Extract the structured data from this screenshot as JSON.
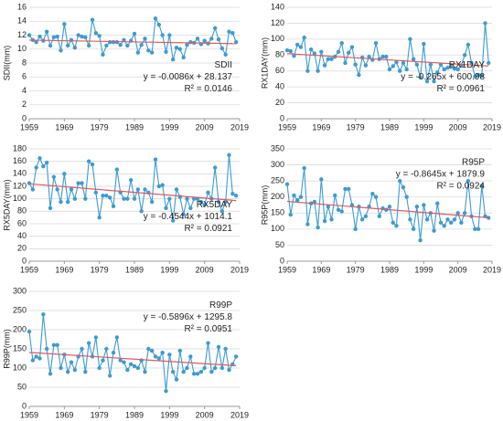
{
  "chart_data": [
    {
      "type": "line",
      "ylabel": "SDII(mm)",
      "x": [
        1959,
        1960,
        1961,
        1962,
        1963,
        1964,
        1965,
        1966,
        1967,
        1968,
        1969,
        1970,
        1971,
        1972,
        1973,
        1974,
        1975,
        1976,
        1977,
        1978,
        1979,
        1980,
        1981,
        1982,
        1983,
        1984,
        1985,
        1986,
        1987,
        1988,
        1989,
        1990,
        1991,
        1992,
        1993,
        1994,
        1995,
        1996,
        1997,
        1998,
        1999,
        2000,
        2001,
        2002,
        2003,
        2004,
        2005,
        2006,
        2007,
        2008,
        2009,
        2010,
        2011,
        2012,
        2013,
        2014,
        2015,
        2016,
        2017,
        2018
      ],
      "series": [
        {
          "name": "SDII",
          "color": "#3d9bd3",
          "values": [
            12.0,
            11.3,
            11.0,
            11.8,
            11.2,
            12.5,
            10.5,
            11.7,
            11.8,
            9.8,
            13.6,
            10.5,
            11.3,
            10.2,
            12.0,
            11.8,
            11.7,
            10.5,
            14.2,
            12.3,
            11.9,
            9.2,
            10.5,
            11.0,
            11.0,
            11.0,
            10.6,
            11.3,
            10.5,
            11.2,
            12.2,
            9.5,
            10.6,
            11.5,
            9.8,
            9.5,
            14.4,
            13.5,
            12.0,
            9.6,
            12.0,
            8.5,
            10.2,
            10.0,
            8.8,
            10.6,
            11.0,
            10.9,
            11.5,
            10.7,
            11.2,
            10.8,
            11.5,
            13.0,
            11.4,
            10.1,
            9.2,
            12.5,
            12.3,
            11.0
          ]
        }
      ],
      "trend": {
        "color": "#e05a5a",
        "slope": -0.0086,
        "intercept": 28.137,
        "equation": "y = -0.0086x + 28.137",
        "r2_label": "R² = 0.0146"
      },
      "xlim": [
        1959,
        2019
      ],
      "xticks": [
        1959,
        1969,
        1979,
        1989,
        1999,
        2009,
        2019
      ],
      "ylim": [
        0,
        16
      ],
      "yticks": [
        0,
        2,
        4,
        6,
        8,
        10,
        12,
        14,
        16
      ],
      "grid": true
    },
    {
      "type": "line",
      "ylabel": "RX1DAY(mm)",
      "x": [
        1959,
        1960,
        1961,
        1962,
        1963,
        1964,
        1965,
        1966,
        1967,
        1968,
        1969,
        1970,
        1971,
        1972,
        1973,
        1974,
        1975,
        1976,
        1977,
        1978,
        1979,
        1980,
        1981,
        1982,
        1983,
        1984,
        1985,
        1986,
        1987,
        1988,
        1989,
        1990,
        1991,
        1992,
        1993,
        1994,
        1995,
        1996,
        1997,
        1998,
        1999,
        2000,
        2001,
        2002,
        2003,
        2004,
        2005,
        2006,
        2007,
        2008,
        2009,
        2010,
        2011,
        2012,
        2013,
        2014,
        2015,
        2016,
        2017,
        2018
      ],
      "series": [
        {
          "name": "RX1DAY",
          "color": "#3d9bd3",
          "values": [
            86,
            85,
            79,
            93,
            90,
            102,
            60,
            87,
            82,
            60,
            84,
            67,
            75,
            75,
            78,
            84,
            95,
            70,
            83,
            90,
            68,
            55,
            77,
            67,
            78,
            74,
            95,
            75,
            78,
            78,
            62,
            66,
            71,
            60,
            70,
            62,
            100,
            75,
            68,
            52,
            94,
            47,
            68,
            47,
            58,
            68,
            62,
            64,
            65,
            63,
            62,
            67,
            80,
            93,
            70,
            53,
            55,
            54,
            120,
            70
          ]
        }
      ],
      "trend": {
        "color": "#e05a5a",
        "slope": -0.265,
        "intercept": 600.98,
        "equation": "y = -0.265x + 600.98",
        "r2_label": "R² = 0.0961"
      },
      "xlim": [
        1959,
        2019
      ],
      "xticks": [
        1959,
        1969,
        1979,
        1989,
        1999,
        2009,
        2019
      ],
      "ylim": [
        0,
        140
      ],
      "yticks": [
        0,
        20,
        40,
        60,
        80,
        100,
        120,
        140
      ],
      "grid": true
    },
    {
      "type": "line",
      "ylabel": "RX5DAY(mm)",
      "x": [
        1959,
        1960,
        1961,
        1962,
        1963,
        1964,
        1965,
        1966,
        1967,
        1968,
        1969,
        1970,
        1971,
        1972,
        1973,
        1974,
        1975,
        1976,
        1977,
        1978,
        1979,
        1980,
        1981,
        1982,
        1983,
        1984,
        1985,
        1986,
        1987,
        1988,
        1989,
        1990,
        1991,
        1992,
        1993,
        1994,
        1995,
        1996,
        1997,
        1998,
        1999,
        2000,
        2001,
        2002,
        2003,
        2004,
        2005,
        2006,
        2007,
        2008,
        2009,
        2010,
        2011,
        2012,
        2013,
        2014,
        2015,
        2016,
        2017,
        2018
      ],
      "series": [
        {
          "name": "RX5DAY",
          "color": "#3d9bd3",
          "values": [
            125,
            115,
            150,
            165,
            152,
            158,
            85,
            135,
            115,
            95,
            140,
            95,
            115,
            100,
            125,
            125,
            100,
            160,
            155,
            110,
            70,
            105,
            105,
            102,
            88,
            147,
            110,
            100,
            100,
            130,
            100,
            115,
            80,
            115,
            110,
            95,
            163,
            120,
            122,
            85,
            100,
            65,
            115,
            103,
            75,
            100,
            85,
            100,
            100,
            95,
            90,
            110,
            100,
            150,
            95,
            80,
            95,
            170,
            108,
            105
          ]
        }
      ],
      "trend": {
        "color": "#e05a5a",
        "slope": -0.4544,
        "intercept": 1014.1,
        "equation": "y = -0.4544x + 1014.1",
        "r2_label": "R² = 0.0921"
      },
      "xlim": [
        1959,
        2019
      ],
      "xticks": [
        1959,
        1969,
        1979,
        1989,
        1999,
        2009,
        2019
      ],
      "ylim": [
        0,
        180
      ],
      "yticks": [
        0,
        20,
        40,
        60,
        80,
        100,
        120,
        140,
        160,
        180
      ],
      "grid": true
    },
    {
      "type": "line",
      "ylabel": "R95P(mm)",
      "x": [
        1959,
        1960,
        1961,
        1962,
        1963,
        1964,
        1965,
        1966,
        1967,
        1968,
        1969,
        1970,
        1971,
        1972,
        1973,
        1974,
        1975,
        1976,
        1977,
        1978,
        1979,
        1980,
        1981,
        1982,
        1983,
        1984,
        1985,
        1986,
        1987,
        1988,
        1989,
        1990,
        1991,
        1992,
        1993,
        1994,
        1995,
        1996,
        1997,
        1998,
        1999,
        2000,
        2001,
        2002,
        2003,
        2004,
        2005,
        2006,
        2007,
        2008,
        2009,
        2010,
        2011,
        2012,
        2013,
        2014,
        2015,
        2016,
        2017,
        2018
      ],
      "series": [
        {
          "name": "R95P",
          "color": "#3d9bd3",
          "values": [
            240,
            145,
            205,
            190,
            200,
            290,
            115,
            180,
            185,
            105,
            255,
            125,
            170,
            130,
            205,
            160,
            155,
            225,
            225,
            175,
            100,
            170,
            130,
            140,
            170,
            210,
            200,
            140,
            165,
            160,
            170,
            120,
            110,
            250,
            230,
            200,
            130,
            100,
            170,
            65,
            175,
            130,
            150,
            95,
            180,
            120,
            110,
            130,
            120,
            130,
            150,
            120,
            150,
            250,
            140,
            100,
            100,
            235,
            140,
            135
          ]
        }
      ],
      "trend": {
        "color": "#e05a5a",
        "slope": -0.8645,
        "intercept": 1879.9,
        "equation": "y = -0.8645x + 1879.9",
        "r2_label": "R² = 0.0924"
      },
      "xlim": [
        1959,
        2019
      ],
      "xticks": [
        1959,
        1969,
        1979,
        1989,
        1999,
        2009,
        2019
      ],
      "ylim": [
        0,
        350
      ],
      "yticks": [
        0,
        50,
        100,
        150,
        200,
        250,
        300,
        350
      ],
      "grid": true
    },
    {
      "type": "line",
      "ylabel": "R99P(mm)",
      "x": [
        1959,
        1960,
        1961,
        1962,
        1963,
        1964,
        1965,
        1966,
        1967,
        1968,
        1969,
        1970,
        1971,
        1972,
        1973,
        1974,
        1975,
        1976,
        1977,
        1978,
        1979,
        1980,
        1981,
        1982,
        1983,
        1984,
        1985,
        1986,
        1987,
        1988,
        1989,
        1990,
        1991,
        1992,
        1993,
        1994,
        1995,
        1996,
        1997,
        1998,
        1999,
        2000,
        2001,
        2002,
        2003,
        2004,
        2005,
        2006,
        2007,
        2008,
        2009,
        2010,
        2011,
        2012,
        2013,
        2014,
        2015,
        2016,
        2017,
        2018
      ],
      "series": [
        {
          "name": "R99P",
          "color": "#3d9bd3",
          "values": [
            195,
            120,
            130,
            125,
            240,
            150,
            85,
            160,
            160,
            100,
            135,
            90,
            115,
            95,
            130,
            150,
            90,
            165,
            130,
            180,
            100,
            120,
            150,
            80,
            140,
            180,
            120,
            115,
            95,
            110,
            105,
            100,
            120,
            90,
            150,
            145,
            130,
            125,
            140,
            40,
            135,
            90,
            70,
            145,
            90,
            100,
            130,
            85,
            85,
            90,
            100,
            165,
            90,
            100,
            155,
            100,
            150,
            95,
            110,
            130
          ]
        }
      ],
      "trend": {
        "color": "#e05a5a",
        "slope": -0.5896,
        "intercept": 1295.8,
        "equation": "y = -0.5896x + 1295.8",
        "r2_label": "R² = 0.0951"
      },
      "xlim": [
        1959,
        2019
      ],
      "xticks": [
        1959,
        1969,
        1979,
        1989,
        1999,
        2009,
        2019
      ],
      "ylim": [
        0,
        300
      ],
      "yticks": [
        0,
        50,
        100,
        150,
        200,
        250,
        300
      ],
      "grid": true
    }
  ]
}
